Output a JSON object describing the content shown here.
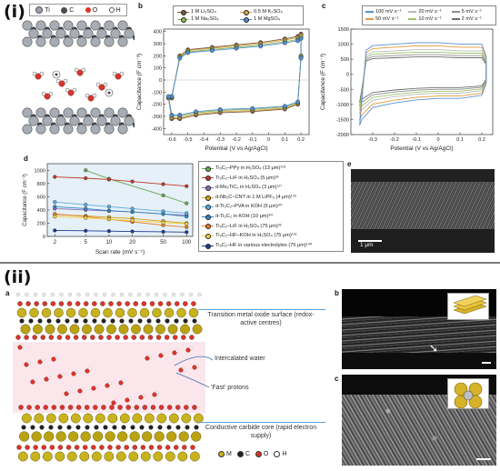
{
  "sections": {
    "i": "(i)",
    "ii": "(ii)"
  },
  "panels": {
    "a": "a",
    "b": "b",
    "c": "c",
    "d": "d",
    "e": "e",
    "iia": "a",
    "iib": "b",
    "iic": "c"
  },
  "atom_legend_a": [
    {
      "label": "Ti",
      "color": "#9aa1aa"
    },
    {
      "label": "C",
      "color": "#4b4b4b"
    },
    {
      "label": "O",
      "color": "#d9352b"
    },
    {
      "label": "H",
      "color": "#ffffff"
    }
  ],
  "chart_b": {
    "type": "line",
    "xlabel": "Potential (V vs Ag/AgCl)",
    "ylabel": "Capacitance (F cm⁻³)",
    "xlim": [
      -0.65,
      0.25
    ],
    "ylim": [
      -450,
      420
    ],
    "xticks": [
      "-0.6",
      "-0.5",
      "-0.4",
      "-0.3",
      "-0.2",
      "-0.1",
      "0",
      "0.1",
      "0.2"
    ],
    "yticks": [
      "400",
      "300",
      "200",
      "100",
      "0",
      "-100",
      "-200",
      "-300",
      "-400"
    ],
    "legend": [
      "1 M Li₂SO₄",
      "0.5 M K₂SO₄",
      "1 M Na₂SO₄",
      "1 M MgSO₄"
    ],
    "legend_colors": [
      "#7a5a3a",
      "#d9a441",
      "#8fb85a",
      "#4d8fd6"
    ]
  },
  "chart_c": {
    "type": "line",
    "xlabel": "Potential (V vs Ag/AgCl)",
    "ylabel": "Capacitance (F cm⁻³)",
    "xlim": [
      -0.4,
      0.25
    ],
    "ylim": [
      -2000,
      1500
    ],
    "xticks": [
      "-0.3",
      "-0.2",
      "-0.1",
      "0",
      "0.1",
      "0.2"
    ],
    "yticks": [
      "1500",
      "1000",
      "500",
      "0",
      "-500",
      "-1000",
      "-1500",
      "-2000"
    ],
    "legend": [
      "100 mV s⁻¹",
      "20 mV s⁻¹",
      "5 mV s⁻¹",
      "50 mV s⁻¹",
      "10 mV s⁻¹",
      "2 mV s⁻¹"
    ],
    "legend_colors": [
      "#5b8fd6",
      "#b9b9b9",
      "#8e8e8e",
      "#e09a3a",
      "#9fc36a",
      "#6e6e6e"
    ]
  },
  "chart_data": {
    "type": "line",
    "xlabel": "Scan rate (mV s⁻¹)",
    "ylabel": "Capacitance (F cm⁻³)",
    "xscale": "log",
    "xticks": [
      "2",
      "5",
      "10",
      "20",
      "50",
      "100"
    ],
    "yticks": [
      "1000",
      "800",
      "600",
      "400",
      "200",
      "0"
    ],
    "ylim": [
      0,
      1100
    ],
    "series": [
      {
        "name": "Ti₃C₂–PPy in H₂SO₄ (13 μm)¹¹⁹",
        "color": "#6aa84f",
        "x": [
          5,
          10,
          50,
          100
        ],
        "y": [
          1000,
          870,
          620,
          500
        ]
      },
      {
        "name": "Ti₃C₂–LiF in H₂SO₄ (5 μm)³⁵",
        "color": "#c0392b",
        "x": [
          2,
          5,
          10,
          20,
          50,
          100
        ],
        "y": [
          900,
          880,
          860,
          830,
          790,
          760
        ]
      },
      {
        "name": "d-Mo₂TiC₂ in H₂SO₄ (3 μm)¹¹⁷",
        "color": "#8e6bbf",
        "x": [
          2,
          5,
          10,
          20,
          50,
          100
        ],
        "y": [
          420,
          400,
          385,
          370,
          340,
          320
        ]
      },
      {
        "name": "d-Nb₂C–CNT in 1 M LiPF₆ (4 μm)¹⁴⁵",
        "color": "#d4a017",
        "x": [
          2,
          5,
          10,
          20,
          50,
          100
        ],
        "y": [
          330,
          310,
          290,
          270,
          230,
          200
        ]
      },
      {
        "name": "d-Ti₃C₂–PVA in KOH (5 μm)⁴⁰",
        "color": "#5dade2",
        "x": [
          2,
          5,
          10,
          20,
          50,
          100
        ],
        "y": [
          520,
          480,
          450,
          420,
          380,
          350
        ]
      },
      {
        "name": "d-Ti₃C₂ in KOH (10 μm)⁸⁴",
        "color": "#2e86c1",
        "x": [
          2,
          5,
          10,
          20,
          50,
          100
        ],
        "y": [
          450,
          420,
          390,
          370,
          340,
          300
        ]
      },
      {
        "name": "Ti₃C₂–LiF in H₂SO₄ (75 μm)³⁵",
        "color": "#e67e22",
        "x": [
          2,
          5,
          10,
          20,
          50,
          100
        ],
        "y": [
          340,
          300,
          260,
          220,
          170,
          140
        ]
      },
      {
        "name": "Ti₃C₂–HF–KOH in H₂SO₄ (75 μm)¹⁵¹",
        "color": "#f4d03f",
        "x": [
          2,
          5,
          10,
          20,
          50,
          100
        ],
        "y": [
          300,
          280,
          260,
          240,
          210,
          190
        ]
      },
      {
        "name": "Ti₃C₂–HF in various electrolytes (75 μm)¹⁴⁰",
        "color": "#1f3a93",
        "x": [
          2,
          5,
          10,
          20,
          50,
          100
        ],
        "y": [
          90,
          85,
          80,
          75,
          70,
          65
        ]
      }
    ]
  },
  "sem_e": {
    "scale": "1 μm"
  },
  "iia": {
    "annotations": [
      "Transition metal oxide surface (redox-active centres)",
      "Intercalated water",
      "'Fast' protons",
      "Conductive carbide core (rapid electron supply)"
    ],
    "legend": [
      {
        "label": "M",
        "color": "#c8b21e"
      },
      {
        "label": "C",
        "color": "#222222"
      },
      {
        "label": "O",
        "color": "#d9352b"
      },
      {
        "label": "H",
        "color": "#ffffff"
      }
    ]
  }
}
